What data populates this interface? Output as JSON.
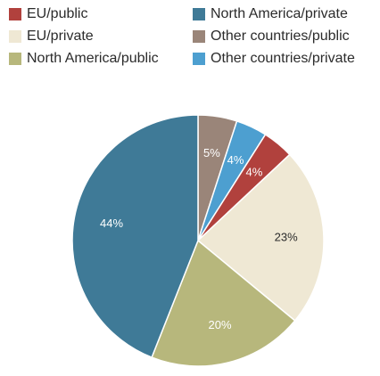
{
  "chart_data": {
    "type": "pie",
    "title": "",
    "legend_position": "top",
    "slices": [
      {
        "name": "Other countries/public",
        "value": 5,
        "label": "5%",
        "color": "#9a8579",
        "label_color": "#ffffff"
      },
      {
        "name": "Other countries/private",
        "value": 4,
        "label": "4%",
        "color": "#4d9fd0",
        "label_color": "#ffffff"
      },
      {
        "name": "EU/public",
        "value": 4,
        "label": "4%",
        "color": "#b1413d",
        "label_color": "#ffffff"
      },
      {
        "name": "EU/private",
        "value": 23,
        "label": "23%",
        "color": "#efe8d4",
        "label_color": "#2b2b2b"
      },
      {
        "name": "North America/public",
        "value": 20,
        "label": "20%",
        "color": "#b7b77c",
        "label_color": "#ffffff"
      },
      {
        "name": "North America/private",
        "value": 44,
        "label": "44%",
        "color": "#3f7a97",
        "label_color": "#ffffff"
      }
    ],
    "legend": [
      {
        "label": "EU/public",
        "color": "#b1413d"
      },
      {
        "label": "North America/private",
        "color": "#3f7a97"
      },
      {
        "label": "EU/private",
        "color": "#efe8d4"
      },
      {
        "label": "Other countries/public",
        "color": "#9a8579"
      },
      {
        "label": "North America/public",
        "color": "#b7b77c"
      },
      {
        "label": "Other countries/private",
        "color": "#4d9fd0"
      }
    ]
  }
}
